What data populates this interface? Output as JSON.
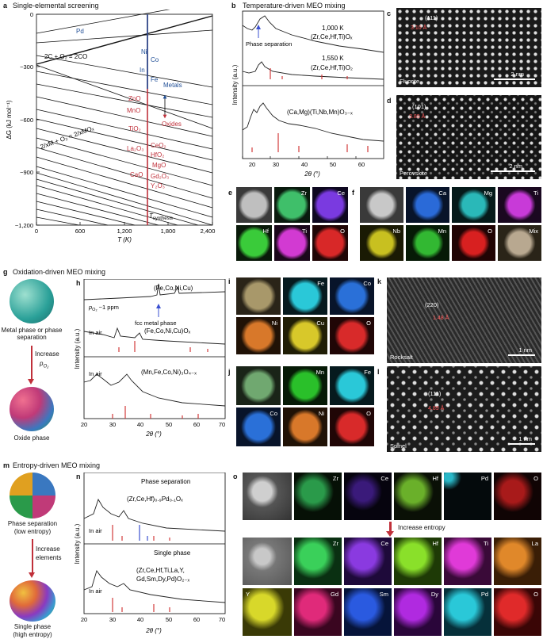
{
  "panels": {
    "a": {
      "letter": "a",
      "title": "Single-elemental screening",
      "ylabel": "ΔG (kJ mol⁻¹)",
      "xlabel": "T (K)",
      "yticks": [
        "0",
        "−300",
        "−600",
        "−900",
        "−1,200"
      ],
      "xticks": [
        "0",
        "600",
        "1,200",
        "1,800",
        "2,400"
      ],
      "metals": [
        "Pd",
        "Ni",
        "Co",
        "In",
        "Fe"
      ],
      "metals_label": "Metals",
      "oxides_label": "Oxides",
      "oxides": [
        "ZnO",
        "MnO",
        "TiO₂",
        "La₂O₃",
        "CeO₂",
        "HfO₂",
        "MgO",
        "CaO",
        "Gd₂O₃",
        "Y₂O₃"
      ],
      "reaction1": "2C + O₂ = 2CO",
      "reaction2": "2/xM + O₂ = 2/xMOₓ",
      "tsyn": "T_synthesis",
      "tsyn_main": "T",
      "tsyn_sub": "synthesis"
    },
    "b": {
      "letter": "b",
      "title": "Temperature-driven MEO mixing",
      "ylabel": "Intensity (a.u.)",
      "xlabel": "2θ (°)",
      "xticks": [
        "20",
        "30",
        "40",
        "50",
        "60"
      ],
      "t1": "1,000 K",
      "s1": "(Zr,Ce,Hf,Ti)Oₓ",
      "t2": "1,550 K",
      "s2": "(Zr,Ce,Hf,Ti)O₂",
      "s3": "(Ca,Mg)(Ti,Nb,Mn)O₃₋ₓ",
      "phase_sep": "Phase separation"
    },
    "c": {
      "letter": "c",
      "hkl": "(111)",
      "d": "3.10 Å",
      "name": "Fluorite",
      "bar": "2 nm"
    },
    "d": {
      "letter": "d",
      "hkl": "(101)",
      "d": "3.89 Å",
      "name": "Perovskite",
      "bar": "2 nm"
    },
    "e": {
      "letter": "e",
      "maps": [
        "",
        "Zr",
        "Ce",
        "Hf",
        "Ti",
        "O"
      ]
    },
    "f": {
      "letter": "f",
      "maps": [
        "",
        "Ca",
        "Mg",
        "Ti",
        "Nb",
        "Mn",
        "O",
        "Mix"
      ]
    },
    "g": {
      "letter": "g",
      "title": "Oxidation-driven MEO mixing",
      "top": "Metal phase or phase separation",
      "arrow1": "Increase",
      "arrow2": "p",
      "arrow2sub": "O₂",
      "bottom": "Oxide phase"
    },
    "h": {
      "letter": "h",
      "ylabel": "Intensity (a.u.)",
      "xlabel": "2θ (°)",
      "xticks": [
        "20",
        "30",
        "40",
        "50",
        "60",
        "70"
      ],
      "s1": "(Fe,Co,Ni,Cu)",
      "po2": "p",
      "po2sub": "O₂",
      "po2val": " ~1 ppm",
      "fcc": "fcc metal phase",
      "air1": "In air",
      "s2": "(Fe,Co,Ni,Cu)Oₓ",
      "air2": "In air",
      "s3": "(Mn,Fe,Co,Ni)₃O₄₋ₓ"
    },
    "i": {
      "letter": "i",
      "maps": [
        "",
        "Fe",
        "Co",
        "Ni",
        "Cu",
        "O"
      ]
    },
    "j": {
      "letter": "j",
      "maps": [
        "",
        "Mn",
        "Fe",
        "Co",
        "Ni",
        "O"
      ]
    },
    "k": {
      "letter": "k",
      "hkl": "(220)",
      "d": "1.48 Å",
      "name": "Rocksalt",
      "bar": "1 nm"
    },
    "l": {
      "letter": "l",
      "hkl": "(111)",
      "d": "4.89 Å",
      "name": "Spinel",
      "bar": "1 nm"
    },
    "m": {
      "letter": "m",
      "title": "Entropy-driven MEO mixing",
      "top1": "Phase separation",
      "top2": "(low entropy)",
      "arrow1": "Increase",
      "arrow2": "elements",
      "bot1": "Single phase",
      "bot2": "(high entropy)"
    },
    "n": {
      "letter": "n",
      "ylabel": "Intensity (a.u.)",
      "xlabel": "2θ (°)",
      "xticks": [
        "20",
        "30",
        "40",
        "50",
        "60",
        "70"
      ],
      "ps": "Phase separation",
      "s1": "(Zr,Ce,Hf)₀.₉Pd₀.₁Oₓ",
      "air1": "In air",
      "sp": "Single phase",
      "s2a": "(Zr,Ce,Hf,Ti,La,Y,",
      "s2b": "Gd,Sm,Dy,Pd)O₂₋ₓ",
      "air2": "In air"
    },
    "o": {
      "letter": "o",
      "row1": [
        "",
        "Zr",
        "Ce",
        "Hf",
        "Pd",
        "O"
      ],
      "inc": "Increase entropy",
      "row2": [
        "",
        "Zr",
        "Ce",
        "Hf",
        "Ti",
        "La"
      ],
      "row3": [
        "Y",
        "Gd",
        "Sm",
        "Dy",
        "Pd",
        "O"
      ]
    }
  },
  "chart_data": [
    {
      "type": "line",
      "panel": "a",
      "title": "Single-elemental screening",
      "xlabel": "T (K)",
      "ylabel": "ΔG (kJ mol⁻¹)",
      "xlim": [
        0,
        2400
      ],
      "ylim": [
        -1200,
        0
      ],
      "series": [
        {
          "name": "2C + O₂ = 2CO",
          "x": [
            0,
            2400
          ],
          "y": [
            -220,
            -700
          ]
        }
      ]
    },
    {
      "type": "line",
      "panel": "b",
      "title": "Temperature-driven MEO mixing",
      "xlabel": "2θ (°)",
      "ylabel": "Intensity (a.u.)",
      "xlim": [
        20,
        70
      ],
      "series": [
        {
          "name": "1,000 K (Zr,Ce,Hf,Ti)Oₓ"
        },
        {
          "name": "1,550 K (Zr,Ce,Hf,Ti)O₂"
        },
        {
          "name": "(Ca,Mg)(Ti,Nb,Mn)O₃₋ₓ"
        }
      ]
    },
    {
      "type": "line",
      "panel": "h",
      "xlabel": "2θ (°)",
      "ylabel": "Intensity (a.u.)",
      "xlim": [
        20,
        70
      ],
      "series": [
        {
          "name": "(Fe,Co,Ni,Cu)"
        },
        {
          "name": "(Fe,Co,Ni,Cu)Oₓ"
        },
        {
          "name": "(Mn,Fe,Co,Ni)₃O₄₋ₓ"
        }
      ]
    },
    {
      "type": "line",
      "panel": "n",
      "xlabel": "2θ (°)",
      "ylabel": "Intensity (a.u.)",
      "xlim": [
        20,
        70
      ],
      "series": [
        {
          "name": "(Zr,Ce,Hf)₀.₉Pd₀.₁Oₓ"
        },
        {
          "name": "(Zr,Ce,Hf,Ti,La,Y,Gd,Sm,Dy,Pd)O₂₋ₓ"
        }
      ]
    }
  ],
  "colors": {
    "metal": "#1f4e96",
    "oxide": "#c0303a",
    "ref": "#d23a3a",
    "blue": "#3a4fd0"
  }
}
